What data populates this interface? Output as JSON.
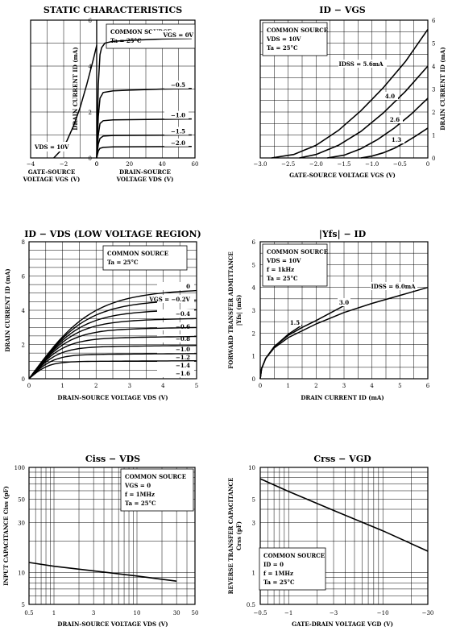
{
  "chart_data": [
    {
      "type": "line",
      "title": "STATIC CHARACTERISTICS",
      "info_lines": [
        "COMMON SOURCE",
        "Ta = 25°C"
      ],
      "left": {
        "xlabel": "GATE-SOURCE",
        "xlabel2": "VOLTAGE  VGS  (V)",
        "xlim": [
          -4,
          0
        ],
        "xticks": [
          "−4",
          "−2",
          "0"
        ],
        "ylabel": "DRAIN CURRENT  ID  (mA)",
        "ylim": [
          0,
          6
        ],
        "yticks": [
          "0",
          "2",
          "4",
          "6"
        ],
        "condition": "VDS = 10V",
        "series": [
          {
            "x": [
              -2.6,
              -2.2,
              -1.8,
              -1.4,
              -1.0,
              -0.6,
              -0.2,
              0
            ],
            "y": [
              0,
              0.3,
              0.75,
              1.4,
              2.2,
              3.2,
              4.3,
              4.9
            ]
          }
        ]
      },
      "right": {
        "xlabel": "DRAIN-SOURCE",
        "xlabel2": "VOLTAGE  VDS  (V)",
        "xlim": [
          0,
          60
        ],
        "xticks": [
          "0",
          "20",
          "40",
          "60"
        ],
        "series": [
          {
            "name": "VGS = 0V",
            "x": [
              0,
              1,
              2,
              3,
              5,
              10,
              20,
              40,
              58
            ],
            "y": [
              0,
              3.2,
              4.5,
              4.8,
              5.0,
              5.08,
              5.12,
              5.18,
              5.2
            ]
          },
          {
            "name": "−0.5",
            "x": [
              0,
              1,
              2,
              4,
              10,
              20,
              40,
              58
            ],
            "y": [
              0,
              1.8,
              2.6,
              2.85,
              2.92,
              2.95,
              3.0,
              3.02
            ]
          },
          {
            "name": "−1.0",
            "x": [
              0,
              1,
              2,
              4,
              10,
              58
            ],
            "y": [
              0,
              1.0,
              1.5,
              1.62,
              1.66,
              1.7
            ]
          },
          {
            "name": "−1.5",
            "x": [
              0,
              1,
              2,
              4,
              10,
              58
            ],
            "y": [
              0,
              0.6,
              0.85,
              0.95,
              0.98,
              1.0
            ]
          },
          {
            "name": "−2.0",
            "x": [
              0,
              1,
              2,
              4,
              10,
              58
            ],
            "y": [
              0,
              0.3,
              0.42,
              0.46,
              0.48,
              0.5
            ]
          }
        ]
      }
    },
    {
      "type": "line",
      "title": "ID − VGS",
      "info_lines": [
        "COMMON SOURCE",
        "VDS = 10V",
        "Ta = 25°C"
      ],
      "xlabel": "GATE-SOURCE VOLTAGE  VGS  (V)",
      "ylabel": "DRAIN CURRENT  ID  (mA)",
      "xlim": [
        -3.0,
        0
      ],
      "ylim": [
        0,
        6
      ],
      "xticks": [
        "−3.0",
        "−2.5",
        "−2.0",
        "−1.5",
        "−1.0",
        "−0.5",
        "0"
      ],
      "yticks": [
        "0",
        "1",
        "2",
        "3",
        "4",
        "5",
        "6"
      ],
      "series": [
        {
          "name": "IDSS = 5.6mA",
          "x": [
            -2.8,
            -2.4,
            -2.0,
            -1.6,
            -1.2,
            -0.8,
            -0.4,
            0
          ],
          "y": [
            0,
            0.15,
            0.55,
            1.2,
            2.05,
            3.05,
            4.2,
            5.6
          ]
        },
        {
          "name": "4.0",
          "x": [
            -2.3,
            -2.0,
            -1.6,
            -1.2,
            -0.8,
            -0.4,
            0
          ],
          "y": [
            0,
            0.15,
            0.55,
            1.15,
            1.95,
            2.9,
            4.0
          ]
        },
        {
          "name": "2.6",
          "x": [
            -1.8,
            -1.5,
            -1.2,
            -0.9,
            -0.6,
            -0.3,
            0
          ],
          "y": [
            0,
            0.12,
            0.4,
            0.8,
            1.3,
            1.9,
            2.6
          ]
        },
        {
          "name": "1.3",
          "x": [
            -1.2,
            -1.0,
            -0.8,
            -0.6,
            -0.4,
            -0.2,
            0
          ],
          "y": [
            0,
            0.08,
            0.22,
            0.42,
            0.68,
            0.98,
            1.3
          ]
        }
      ]
    },
    {
      "type": "line",
      "title": "ID − VDS  (LOW VOLTAGE REGION)",
      "info_lines": [
        "COMMON SOURCE",
        "Ta = 25°C"
      ],
      "xlabel": "DRAIN-SOURCE VOLTAGE  VDS  (V)",
      "ylabel": "DRAIN CURRENT  ID  (mA)",
      "xlim": [
        0,
        5
      ],
      "ylim": [
        0,
        8
      ],
      "xticks": [
        "0",
        "1",
        "2",
        "3",
        "4",
        "5"
      ],
      "yticks": [
        "0",
        "2",
        "4",
        "6",
        "8"
      ],
      "series": [
        {
          "name": "0",
          "sat": 4.95
        },
        {
          "name": "VGS = −0.2V",
          "sat": 4.4
        },
        {
          "name": "−0.4",
          "sat": 3.85
        },
        {
          "name": "−0.6",
          "sat": 3.35
        },
        {
          "name": "−0.8",
          "sat": 2.85
        },
        {
          "name": "−1.0",
          "sat": 2.35
        },
        {
          "name": "−1.2",
          "sat": 1.85
        },
        {
          "name": "−1.4",
          "sat": 1.4
        },
        {
          "name": "−1.6",
          "sat": 1.0
        }
      ]
    },
    {
      "type": "line",
      "title": "|Yfs| − ID",
      "info_lines": [
        "COMMON SOURCE",
        "VDS = 10V",
        "f = 1kHz",
        "Ta = 25°C"
      ],
      "xlabel": "DRAIN CURRENT  ID  (mA)",
      "ylabel": "FORWARD TRANSFER ADMITTANCE",
      "ylabel2": "|Yfs|  (mS)",
      "xlim": [
        0,
        6
      ],
      "ylim": [
        0,
        6
      ],
      "xticks": [
        "0",
        "1",
        "2",
        "3",
        "4",
        "5",
        "6"
      ],
      "yticks": [
        "0",
        "1",
        "2",
        "3",
        "4",
        "5",
        "6"
      ],
      "series": [
        {
          "name": "IDSS = 6.0mA",
          "x": [
            0,
            0.05,
            0.2,
            0.5,
            1.0,
            2.0,
            3.0,
            4.0,
            5.0,
            6.0
          ],
          "y": [
            0,
            0.45,
            0.9,
            1.35,
            1.8,
            2.4,
            2.9,
            3.3,
            3.65,
            4.0
          ]
        },
        {
          "name": "3.0",
          "x": [
            0,
            0.05,
            0.2,
            0.5,
            1.0,
            1.5,
            2.0,
            3.0
          ],
          "y": [
            0,
            0.45,
            0.9,
            1.4,
            1.9,
            2.25,
            2.55,
            3.2
          ]
        },
        {
          "name": "1.5",
          "x": [
            0,
            0.05,
            0.2,
            0.5,
            1.0,
            1.5
          ],
          "y": [
            0,
            0.45,
            0.9,
            1.4,
            1.95,
            2.35
          ]
        }
      ]
    },
    {
      "type": "line",
      "title": "Ciss − VDS",
      "info_lines": [
        "COMMON SOURCE",
        "VGS = 0",
        "f = 1MHz",
        "Ta = 25°C"
      ],
      "xlabel": "DRAIN-SOURCE VOLTAGE  VDS  (V)",
      "ylabel": "INPUT CAPACITANCE  Ciss  (pF)",
      "xscale": "log",
      "yscale": "log",
      "xlim": [
        0.5,
        50
      ],
      "ylim": [
        5,
        100
      ],
      "xticks": [
        "0.5",
        "1",
        "3",
        "10",
        "30",
        "50"
      ],
      "yticks": [
        "5",
        "10",
        "30",
        "50",
        "100"
      ],
      "series": [
        {
          "x": [
            0.5,
            1,
            3,
            10,
            30
          ],
          "y": [
            12.5,
            11.5,
            10.4,
            9.3,
            8.3
          ]
        }
      ]
    },
    {
      "type": "line",
      "title": "Crss − VGD",
      "info_lines": [
        "COMMON SOURCE",
        "ID = 0",
        "f = 1MHz",
        "Ta = 25°C"
      ],
      "xlabel": "GATE-DRAIN VOLTAGE  VGD  (V)",
      "ylabel": "REVERSE TRANSFER CAPACITANCE",
      "ylabel2": "Crss  (pF)",
      "xscale": "log",
      "yscale": "log",
      "xlim": [
        -0.5,
        -30
      ],
      "ylim": [
        0.5,
        10
      ],
      "xticks": [
        "−0.5",
        "−1",
        "−3",
        "−10",
        "−30"
      ],
      "yticks": [
        "0.5",
        "1",
        "3",
        "5",
        "10"
      ],
      "series": [
        {
          "x": [
            -0.5,
            -1,
            -3,
            -10,
            -30
          ],
          "y": [
            7.8,
            5.9,
            3.9,
            2.5,
            1.6
          ]
        }
      ]
    }
  ]
}
